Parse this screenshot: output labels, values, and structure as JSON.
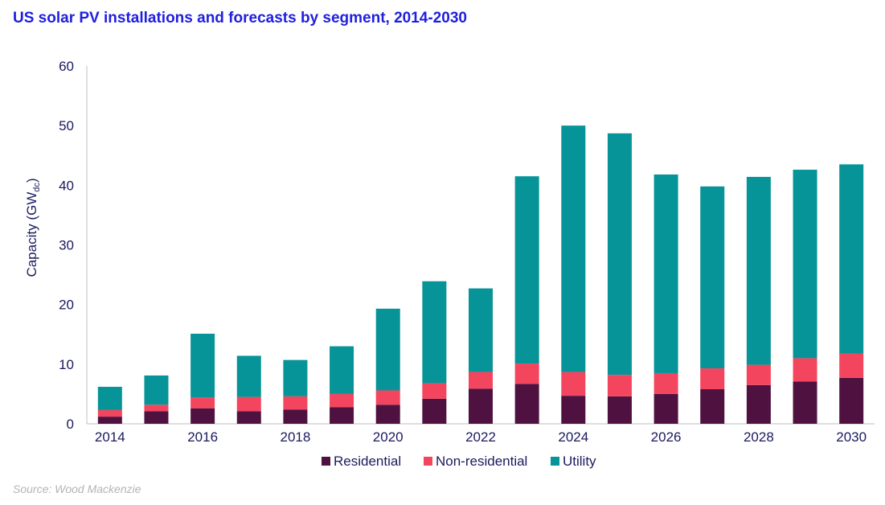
{
  "chart_data": {
    "type": "bar",
    "stacked": true,
    "title": "US solar PV installations and forecasts by segment, 2014-2030",
    "ylabel": "Capacity (GW",
    "ylabel_sub": "dc",
    "ylabel_close": ")",
    "xlabel": "",
    "ylim": [
      0,
      60
    ],
    "yticks": [
      0,
      10,
      20,
      30,
      40,
      50,
      60
    ],
    "xtick_labels": [
      "2014",
      "2016",
      "2018",
      "2020",
      "2022",
      "2024",
      "2026",
      "2028",
      "2030"
    ],
    "categories": [
      "2014",
      "2015",
      "2016",
      "2017",
      "2018",
      "2019",
      "2020",
      "2021",
      "2022",
      "2023",
      "2024",
      "2025",
      "2026",
      "2027",
      "2028",
      "2029",
      "2030"
    ],
    "series": [
      {
        "name": "Residential",
        "color": "#4f1240",
        "values": [
          1.2,
          2.1,
          2.6,
          2.1,
          2.4,
          2.8,
          3.2,
          4.2,
          5.9,
          6.7,
          4.7,
          4.6,
          5.0,
          5.8,
          6.5,
          7.1,
          7.7
        ]
      },
      {
        "name": "Non-residential",
        "color": "#f4455e",
        "values": [
          1.1,
          1.1,
          1.8,
          2.4,
          2.2,
          2.2,
          2.4,
          2.6,
          2.8,
          3.4,
          4.0,
          3.6,
          3.5,
          3.5,
          3.4,
          3.9,
          4.1
        ]
      },
      {
        "name": "Utility",
        "color": "#079498",
        "values": [
          3.9,
          4.9,
          10.7,
          6.9,
          6.1,
          8.0,
          13.7,
          17.1,
          14.0,
          31.4,
          41.3,
          40.5,
          33.3,
          30.5,
          31.5,
          31.6,
          31.7
        ]
      }
    ],
    "grid": false,
    "legend_position": "bottom"
  },
  "source": "Source: Wood Mackenzie"
}
